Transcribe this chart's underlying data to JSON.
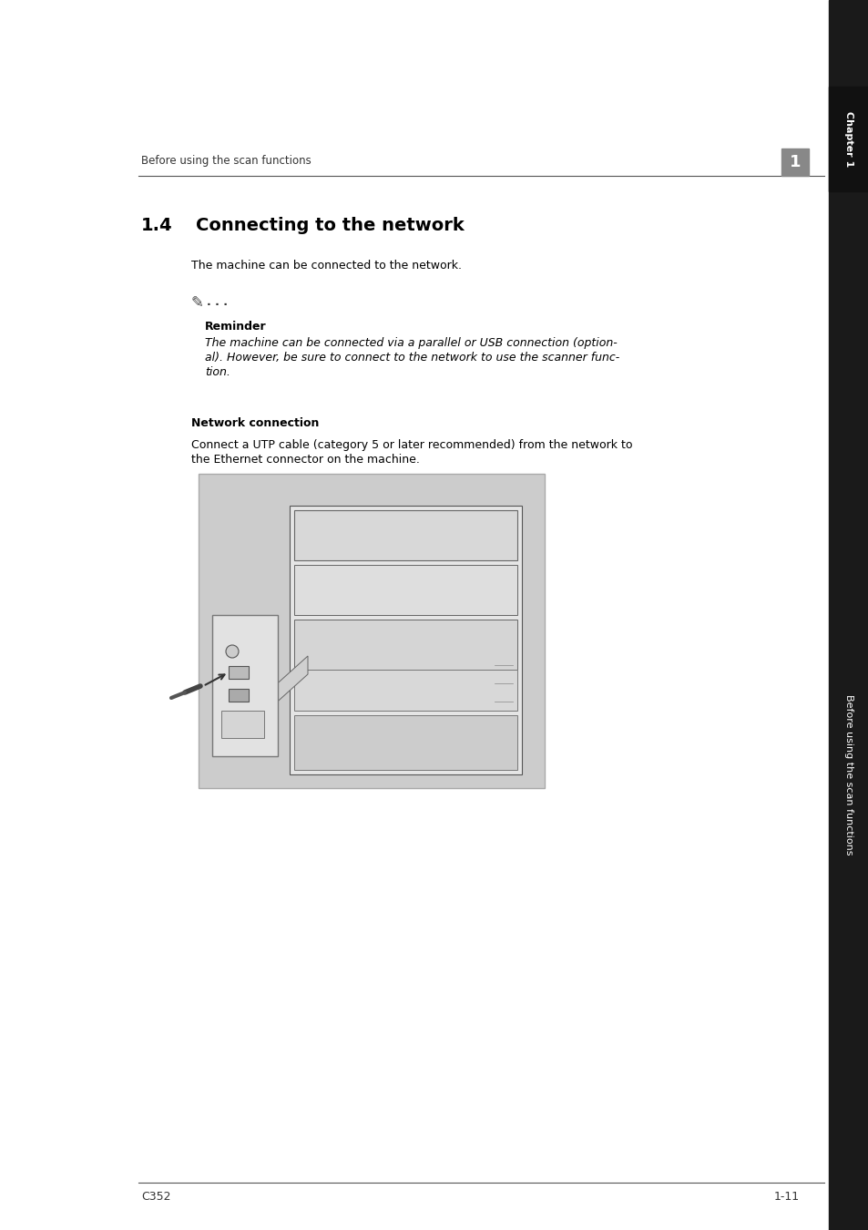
{
  "page_bg": "#ffffff",
  "sidebar_bg": "#1a1a1a",
  "sidebar_text": "Before using the scan functions",
  "sidebar_chapter_text": "Chapter 1",
  "header_line_color": "#555555",
  "header_text": "Before using the scan functions",
  "header_number_bg": "#888888",
  "header_number_text": "1",
  "section_number": "1.4",
  "section_title": "Connecting to the network",
  "body_text_1": "The machine can be connected to the network.",
  "reminder_label": "Reminder",
  "reminder_italic_line1": "The machine can be connected via a parallel or USB connection (option-",
  "reminder_italic_line2": "al). However, be sure to connect to the network to use the scanner func-",
  "reminder_italic_line3": "tion.",
  "network_connection_label": "Network connection",
  "network_body_line1": "Connect a UTP cable (category 5 or later recommended) from the network to",
  "network_body_line2": "the Ethernet connector on the machine.",
  "footer_left": "C352",
  "footer_right": "1-11",
  "footer_line_color": "#555555",
  "image_bg": "#cccccc",
  "image_border": "#888888",
  "dots": ". . .",
  "pencil_symbol": "✎"
}
